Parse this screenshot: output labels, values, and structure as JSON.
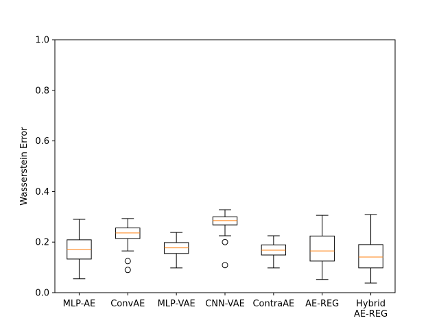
{
  "chart_data": {
    "type": "box",
    "title": "",
    "xlabel": "",
    "ylabel": "Wasserstein Error",
    "ylim": [
      0,
      1.0
    ],
    "yticks": [
      "0.0",
      "0.2",
      "0.4",
      "0.6",
      "0.8",
      "1.0"
    ],
    "grid": false,
    "categories": [
      [
        "MLP-AE"
      ],
      [
        "ConvAE"
      ],
      [
        "MLP-VAE"
      ],
      [
        "CNN-VAE"
      ],
      [
        "ContraAE"
      ],
      [
        "AE-REG"
      ],
      [
        "Hybrid",
        "AE-REG"
      ]
    ],
    "boxes": [
      {
        "whisker_low": 0.055,
        "q1": 0.133,
        "median": 0.17,
        "q3": 0.209,
        "whisker_high": 0.29,
        "outliers": []
      },
      {
        "whisker_low": 0.165,
        "q1": 0.214,
        "median": 0.236,
        "q3": 0.256,
        "whisker_high": 0.293,
        "outliers": [
          0.125,
          0.09
        ]
      },
      {
        "whisker_low": 0.098,
        "q1": 0.155,
        "median": 0.177,
        "q3": 0.198,
        "whisker_high": 0.238,
        "outliers": []
      },
      {
        "whisker_low": 0.225,
        "q1": 0.268,
        "median": 0.285,
        "q3": 0.3,
        "whisker_high": 0.328,
        "outliers": [
          0.2,
          0.109
        ]
      },
      {
        "whisker_low": 0.098,
        "q1": 0.149,
        "median": 0.168,
        "q3": 0.189,
        "whisker_high": 0.225,
        "outliers": []
      },
      {
        "whisker_low": 0.052,
        "q1": 0.125,
        "median": 0.165,
        "q3": 0.224,
        "whisker_high": 0.306,
        "outliers": []
      },
      {
        "whisker_low": 0.038,
        "q1": 0.098,
        "median": 0.141,
        "q3": 0.19,
        "whisker_high": 0.309,
        "outliers": []
      }
    ],
    "colors": {
      "box": "#000000",
      "median": "#ff7f0e",
      "outlier_fill": "#ffffff"
    }
  }
}
